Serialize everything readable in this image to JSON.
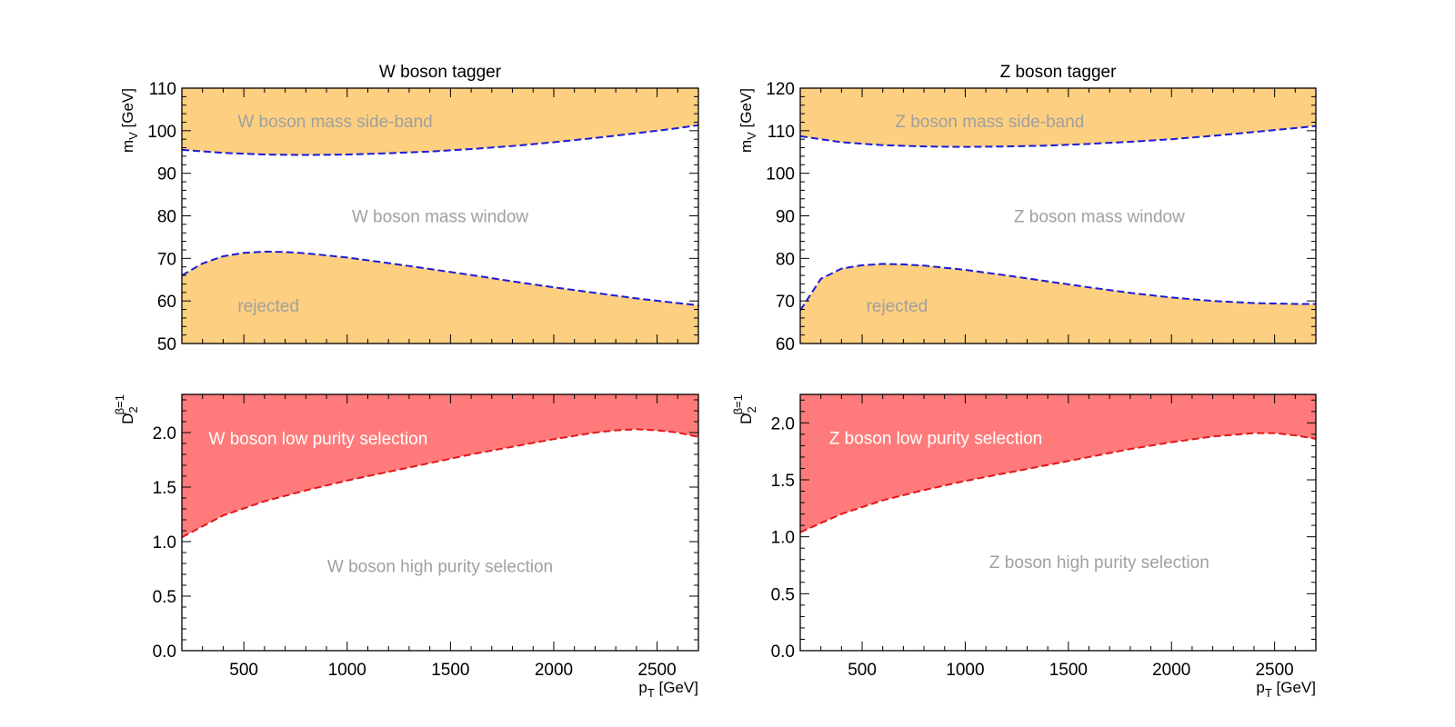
{
  "chart_data": [
    {
      "id": "w-mass",
      "type": "area",
      "title": "W boson tagger",
      "xlabel": "",
      "ylabel": "m_V [GeV]",
      "ylabel_main": "m",
      "ylabel_sub": "V",
      "ylabel_rest": " [GeV]",
      "xlim": [
        200,
        2700
      ],
      "ylim": [
        50,
        110
      ],
      "xticks": [
        500,
        1000,
        1500,
        2000,
        2500
      ],
      "yticks": [
        50,
        60,
        70,
        80,
        90,
        100,
        110
      ],
      "show_xtick_labels": false,
      "fill_color": "#fdcf80",
      "line_color": "#1a1adb",
      "upper_boundary": {
        "x": [
          200,
          400,
          600,
          800,
          1000,
          1200,
          1400,
          1600,
          1800,
          2000,
          2200,
          2400,
          2600,
          2700
        ],
        "y": [
          95.5,
          94.8,
          94.4,
          94.3,
          94.4,
          94.7,
          95.1,
          95.7,
          96.4,
          97.3,
          98.3,
          99.4,
          100.6,
          101.3
        ]
      },
      "lower_boundary": {
        "x": [
          200,
          300,
          400,
          500,
          600,
          700,
          800,
          1000,
          1200,
          1400,
          1600,
          1800,
          2000,
          2200,
          2400,
          2600,
          2700
        ],
        "y": [
          66,
          68.8,
          70.5,
          71.3,
          71.6,
          71.5,
          71.2,
          70.2,
          68.9,
          67.5,
          66.1,
          64.6,
          63.2,
          61.9,
          60.6,
          59.5,
          59
        ]
      },
      "labels": [
        {
          "text": "W boson mass side-band",
          "x": 470,
          "y": 102.3,
          "anchor": "start",
          "color": "#a0a0a0"
        },
        {
          "text": "W boson mass window",
          "x": 1450,
          "y": 80,
          "anchor": "middle",
          "color": "#a0a0a0"
        },
        {
          "text": "rejected",
          "x": 470,
          "y": 59,
          "anchor": "start",
          "color": "#a0a0a0"
        }
      ]
    },
    {
      "id": "z-mass",
      "type": "area",
      "title": "Z boson tagger",
      "xlabel": "",
      "ylabel": "m_V [GeV]",
      "ylabel_main": "m",
      "ylabel_sub": "V",
      "ylabel_rest": " [GeV]",
      "xlim": [
        200,
        2700
      ],
      "ylim": [
        60,
        120
      ],
      "xticks": [
        500,
        1000,
        1500,
        2000,
        2500
      ],
      "yticks": [
        60,
        70,
        80,
        90,
        100,
        110,
        120
      ],
      "show_xtick_labels": false,
      "fill_color": "#fdcf80",
      "line_color": "#1a1adb",
      "upper_boundary": {
        "x": [
          200,
          400,
          600,
          800,
          1000,
          1200,
          1400,
          1600,
          1800,
          2000,
          2200,
          2400,
          2600,
          2700
        ],
        "y": [
          108.7,
          107.3,
          106.6,
          106.3,
          106.2,
          106.3,
          106.5,
          106.9,
          107.4,
          108.0,
          108.8,
          109.7,
          110.6,
          111.1
        ]
      },
      "lower_boundary": {
        "x": [
          200,
          300,
          400,
          500,
          600,
          700,
          800,
          1000,
          1200,
          1400,
          1600,
          1800,
          2000,
          2200,
          2400,
          2600,
          2700
        ],
        "y": [
          67.8,
          75.2,
          77.6,
          78.4,
          78.7,
          78.6,
          78.3,
          77.3,
          76.0,
          74.6,
          73.2,
          71.9,
          70.8,
          70.0,
          69.5,
          69.3,
          69.3
        ]
      },
      "labels": [
        {
          "text": "Z boson mass side-band",
          "x": 660,
          "y": 112.3,
          "anchor": "start",
          "color": "#a0a0a0"
        },
        {
          "text": "Z boson mass window",
          "x": 1650,
          "y": 90,
          "anchor": "middle",
          "color": "#a0a0a0"
        },
        {
          "text": "rejected",
          "x": 520,
          "y": 69,
          "anchor": "start",
          "color": "#a0a0a0"
        }
      ]
    },
    {
      "id": "w-d2",
      "type": "area",
      "title": "",
      "xlabel": "p_T [GeV]",
      "xlabel_main": "p",
      "xlabel_sub": "T",
      "xlabel_rest": " [GeV]",
      "ylabel": "D_2^{β=1}",
      "ylabel_main": "D",
      "ylabel_sub": "2",
      "ylabel_sup": "β=1",
      "xlim": [
        200,
        2700
      ],
      "ylim": [
        0,
        2.35
      ],
      "xticks": [
        500,
        1000,
        1500,
        2000,
        2500
      ],
      "yticks": [
        0.0,
        0.5,
        1.0,
        1.5,
        2.0
      ],
      "ytick_labels": [
        "0.0",
        "0.5",
        "1.0",
        "1.5",
        "2.0"
      ],
      "show_xtick_labels": true,
      "fill_color": "#ff7b7b",
      "line_color": "#e01818",
      "boundary": {
        "x": [
          200,
          400,
          600,
          800,
          1000,
          1200,
          1400,
          1600,
          1800,
          2000,
          2200,
          2300,
          2400,
          2500,
          2600,
          2700
        ],
        "y": [
          1.04,
          1.24,
          1.37,
          1.47,
          1.56,
          1.64,
          1.72,
          1.8,
          1.87,
          1.94,
          2.0,
          2.02,
          2.03,
          2.02,
          2.0,
          1.96
        ]
      },
      "labels": [
        {
          "text": "W boson low purity selection",
          "x": 330,
          "y": 1.95,
          "anchor": "start",
          "color": "#ffffff"
        },
        {
          "text": "W boson high purity selection",
          "x": 1450,
          "y": 0.78,
          "anchor": "middle",
          "color": "#a0a0a0"
        }
      ]
    },
    {
      "id": "z-d2",
      "type": "area",
      "title": "",
      "xlabel": "p_T [GeV]",
      "xlabel_main": "p",
      "xlabel_sub": "T",
      "xlabel_rest": " [GeV]",
      "ylabel": "D_2^{β=1}",
      "ylabel_main": "D",
      "ylabel_sub": "2",
      "ylabel_sup": "β=1",
      "xlim": [
        200,
        2700
      ],
      "ylim": [
        0,
        2.25
      ],
      "xticks": [
        500,
        1000,
        1500,
        2000,
        2500
      ],
      "yticks": [
        0.0,
        0.5,
        1.0,
        1.5,
        2.0
      ],
      "ytick_labels": [
        "0.0",
        "0.5",
        "1.0",
        "1.5",
        "2.0"
      ],
      "show_xtick_labels": true,
      "fill_color": "#ff7b7b",
      "line_color": "#e01818",
      "boundary": {
        "x": [
          200,
          400,
          600,
          800,
          1000,
          1200,
          1400,
          1600,
          1800,
          2000,
          2200,
          2400,
          2500,
          2600,
          2700
        ],
        "y": [
          1.04,
          1.2,
          1.32,
          1.41,
          1.49,
          1.56,
          1.63,
          1.7,
          1.77,
          1.83,
          1.88,
          1.91,
          1.91,
          1.89,
          1.86
        ]
      },
      "labels": [
        {
          "text": "Z boson low purity selection",
          "x": 340,
          "y": 1.87,
          "anchor": "start",
          "color": "#ffffff"
        },
        {
          "text": "Z boson high purity selection",
          "x": 1650,
          "y": 0.78,
          "anchor": "middle",
          "color": "#a0a0a0"
        }
      ]
    }
  ]
}
